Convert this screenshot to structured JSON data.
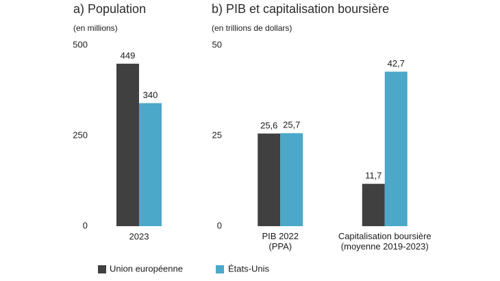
{
  "chart_data": [
    {
      "type": "bar",
      "title": "a)  Population",
      "subtitle": "(en millions)",
      "categories": [
        "2023"
      ],
      "series": [
        {
          "name": "Union européenne",
          "color": "#404040",
          "values": [
            449
          ]
        },
        {
          "name": "États-Unis",
          "color": "#4ba8c9",
          "values": [
            340
          ]
        }
      ],
      "ylim": [
        0,
        500
      ],
      "yticks": [
        0,
        250,
        500
      ],
      "grid": false
    },
    {
      "type": "bar",
      "title": "b)  PIB et capitalisation boursière",
      "subtitle": "(en trillions de dollars)",
      "categories": [
        "PIB 2022\n(PPA)",
        "Capitalisation boursière\n(moyenne 2019-2023)"
      ],
      "series": [
        {
          "color": "#404040",
          "values": [
            25.6,
            11.7
          ],
          "value_labels": [
            "25,6",
            "11,7"
          ]
        },
        {
          "color": "#4ba8c9",
          "values": [
            25.7,
            42.7
          ],
          "value_labels": [
            "25,7",
            "42,7"
          ]
        }
      ],
      "ylim": [
        0,
        50
      ],
      "yticks": [
        0,
        25,
        50
      ],
      "grid": false
    }
  ]
}
